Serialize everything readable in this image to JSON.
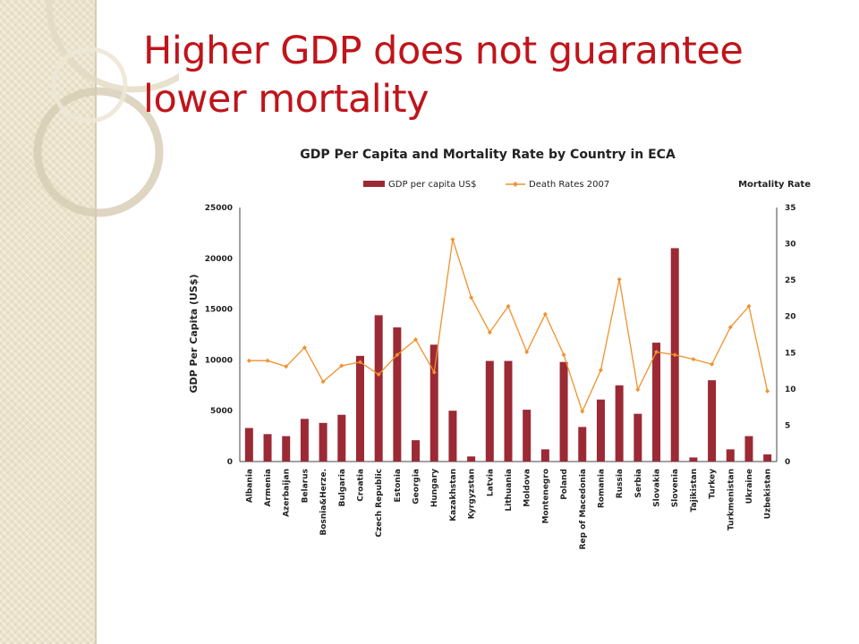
{
  "slide": {
    "title": "Higher GDP does not guarantee lower mortality"
  },
  "colors": {
    "accent_title": "#c0141b",
    "bar": "#9b2a35",
    "line": "#f0922d",
    "background_panel": "#ece3cc"
  },
  "chart_data": {
    "type": "bar",
    "title": "GDP Per Capita and Mortality Rate by Country in ECA",
    "ylabel": "GDP Per Capita (US$)",
    "y2label": "Mortality Rate",
    "ylim": [
      0,
      25000
    ],
    "y2lim": [
      0,
      35
    ],
    "yticks": [
      "0",
      "5000",
      "10000",
      "15000",
      "20000",
      "25000"
    ],
    "y2ticks": [
      "0",
      "5",
      "10",
      "15",
      "20",
      "25",
      "30",
      "35"
    ],
    "legend_position": "top",
    "grid": false,
    "categories": [
      "Albania",
      "Armenia",
      "Azerbaijan",
      "Belarus",
      "Bosnia&Herze.",
      "Bulgaria",
      "Croatia",
      "Czech Republic",
      "Estonia",
      "Georgia",
      "Hungary",
      "Kazakhstan",
      "Kyrgyzstan",
      "Latvia",
      "Lithuania",
      "Moldova",
      "Montenegro",
      "Poland",
      "Rep of Macedonia",
      "Romania",
      "Russia",
      "Serbia",
      "Slovakia",
      "Slovenia",
      "Tajikistan",
      "Turkey",
      "Turkmenistan",
      "Ukraine",
      "Uzbekistan"
    ],
    "series": [
      {
        "name": "GDP per capita US$",
        "type": "bar",
        "axis": "left",
        "values": [
          3300,
          2700,
          2500,
          4200,
          3800,
          4600,
          10400,
          14400,
          13200,
          2100,
          11500,
          5000,
          500,
          9900,
          9900,
          5100,
          1200,
          9800,
          3400,
          6100,
          7500,
          4700,
          11700,
          21000,
          400,
          8000,
          1200,
          2500,
          700
        ]
      },
      {
        "name": "Death Rates 2007",
        "type": "line",
        "axis": "right",
        "values": [
          13.9,
          13.9,
          13.1,
          15.7,
          11.0,
          13.2,
          13.7,
          12.0,
          14.7,
          16.8,
          12.3,
          30.6,
          22.6,
          17.8,
          21.4,
          15.1,
          20.3,
          14.7,
          6.9,
          12.6,
          25.1,
          9.9,
          15.1,
          14.7,
          14.1,
          13.4,
          18.5,
          21.4,
          9.7
        ]
      }
    ]
  }
}
